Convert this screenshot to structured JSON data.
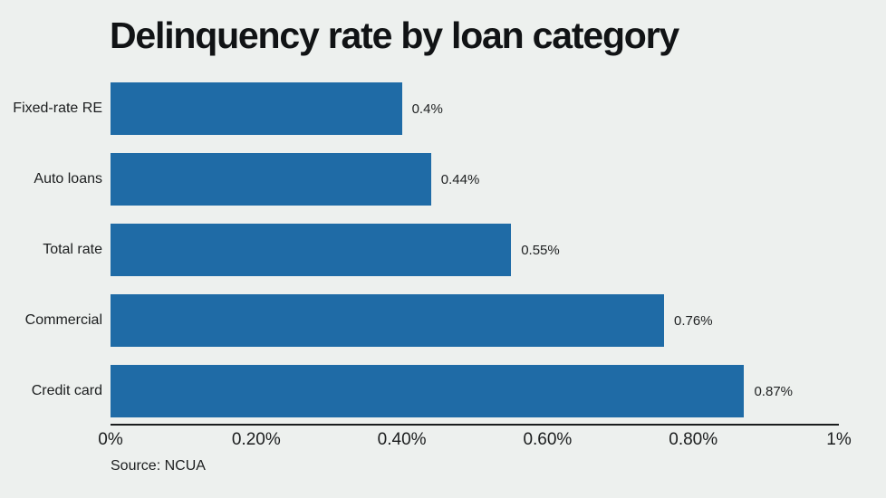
{
  "title": "Delinquency rate by loan category",
  "source": "Source: NCUA",
  "colors": {
    "bar": "#1f6ba6",
    "background": "#edf0ee",
    "axis": "#1b1d1e",
    "text": "#1c1e1f"
  },
  "chart_data": {
    "type": "bar",
    "orientation": "horizontal",
    "title": "Delinquency rate by loan category",
    "categories": [
      "Fixed-rate RE",
      "Auto loans",
      "Total rate",
      "Commercial",
      "Credit card"
    ],
    "values": [
      0.4,
      0.44,
      0.55,
      0.76,
      0.87
    ],
    "value_labels": [
      "0.4%",
      "0.44%",
      "0.55%",
      "0.76%",
      "0.87%"
    ],
    "xlabel": "",
    "ylabel": "",
    "xlim": [
      0,
      1
    ],
    "x_ticks": [
      {
        "value": 0,
        "label": "0%"
      },
      {
        "value": 0.2,
        "label": "0.20%"
      },
      {
        "value": 0.4,
        "label": "0.40%"
      },
      {
        "value": 0.6,
        "label": "0.60%"
      },
      {
        "value": 0.8,
        "label": "0.80%"
      },
      {
        "value": 1,
        "label": "1%"
      }
    ],
    "grid": false,
    "legend": false,
    "data_labels": true,
    "source": "Source: NCUA"
  }
}
